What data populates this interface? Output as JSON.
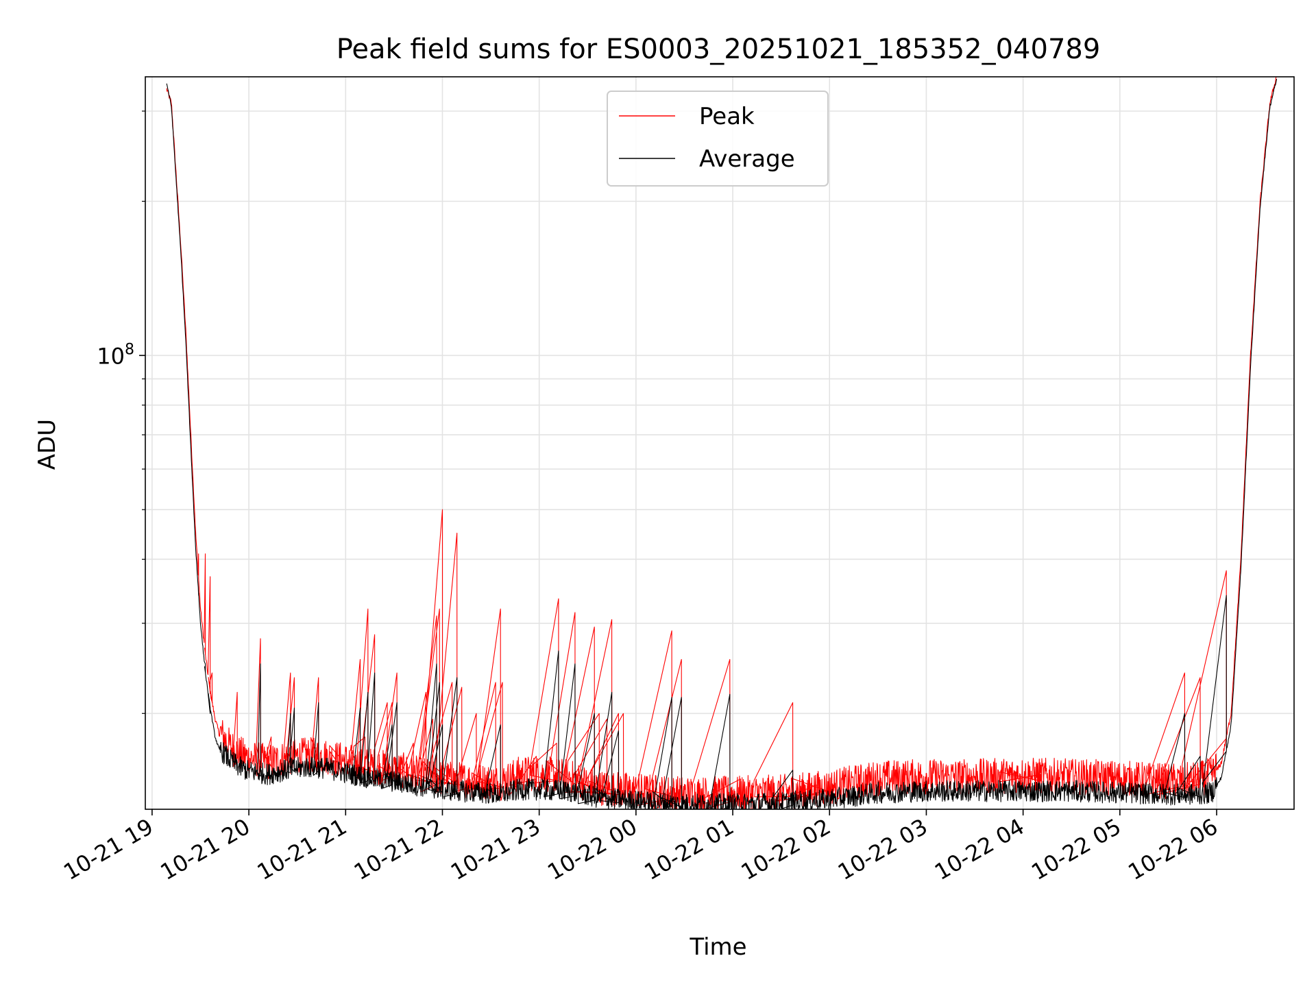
{
  "chart_data": {
    "type": "line",
    "title": "Peak field sums for ES0003_20251021_185352_040789",
    "xlabel": "Time",
    "ylabel": "ADU",
    "yscale": "log",
    "ylim": [
      13000000,
      350000000
    ],
    "xlim": [
      -0.07,
      11.8
    ],
    "x_unit": "hours after 2025-10-21 19:00",
    "grid": true,
    "legend_position": "upper center",
    "x_ticks": [
      {
        "value": 0,
        "label": "10-21 19"
      },
      {
        "value": 1,
        "label": "10-21 20"
      },
      {
        "value": 2,
        "label": "10-21 21"
      },
      {
        "value": 3,
        "label": "10-21 22"
      },
      {
        "value": 4,
        "label": "10-21 23"
      },
      {
        "value": 5,
        "label": "10-22 00"
      },
      {
        "value": 6,
        "label": "10-22 01"
      },
      {
        "value": 7,
        "label": "10-22 02"
      },
      {
        "value": 8,
        "label": "10-22 03"
      },
      {
        "value": 9,
        "label": "10-22 04"
      },
      {
        "value": 10,
        "label": "10-22 05"
      },
      {
        "value": 11,
        "label": "10-22 06"
      }
    ],
    "y_major_ticks": [
      {
        "value": 100000000,
        "base": "10",
        "exponent": "8"
      }
    ],
    "y_minor_ticks": [
      20000000,
      30000000,
      40000000,
      50000000,
      60000000,
      70000000,
      80000000,
      90000000,
      200000000,
      300000000
    ],
    "series": [
      {
        "name": "Peak",
        "color": "#ff0000",
        "baseline": [
          [
            0.15,
            330000000
          ],
          [
            0.2,
            310000000
          ],
          [
            0.3,
            160000000
          ],
          [
            0.35,
            110000000
          ],
          [
            0.4,
            70000000
          ],
          [
            0.45,
            45000000
          ],
          [
            0.5,
            32000000
          ],
          [
            0.55,
            26000000
          ],
          [
            0.6,
            22000000
          ],
          [
            0.65,
            19500000
          ],
          [
            0.7,
            18000000
          ],
          [
            0.8,
            16900000
          ],
          [
            0.9,
            16300000
          ],
          [
            1.0,
            16000000
          ],
          [
            1.2,
            15700000
          ],
          [
            1.4,
            16000000
          ],
          [
            1.6,
            16200000
          ],
          [
            1.8,
            16100000
          ],
          [
            2.0,
            15800000
          ],
          [
            2.2,
            15500000
          ],
          [
            2.4,
            15300000
          ],
          [
            2.6,
            15100000
          ],
          [
            2.8,
            14800000
          ],
          [
            3.0,
            14600000
          ],
          [
            3.2,
            14500000
          ],
          [
            3.4,
            14400000
          ],
          [
            3.6,
            14300000
          ],
          [
            3.8,
            14900000
          ],
          [
            4.0,
            14900000
          ],
          [
            4.3,
            14700000
          ],
          [
            4.6,
            14000000
          ],
          [
            5.0,
            13800000
          ],
          [
            5.5,
            13600000
          ],
          [
            6.0,
            13600000
          ],
          [
            6.5,
            13700000
          ],
          [
            7.0,
            14000000
          ],
          [
            7.5,
            14600000
          ],
          [
            8.0,
            14700000
          ],
          [
            8.5,
            14700000
          ],
          [
            9.0,
            14800000
          ],
          [
            9.5,
            14700000
          ],
          [
            10.0,
            14600000
          ],
          [
            10.5,
            14400000
          ],
          [
            10.8,
            14500000
          ],
          [
            10.95,
            14800000
          ],
          [
            11.05,
            16000000
          ],
          [
            11.15,
            20000000
          ],
          [
            11.25,
            40000000
          ],
          [
            11.35,
            100000000
          ],
          [
            11.45,
            200000000
          ],
          [
            11.55,
            310000000
          ],
          [
            11.62,
            350000000
          ]
        ],
        "spikes": [
          [
            0.48,
            41000000
          ],
          [
            0.55,
            41000000
          ],
          [
            0.6,
            37000000
          ],
          [
            0.62,
            24000000
          ],
          [
            0.88,
            22000000
          ],
          [
            1.12,
            28000000
          ],
          [
            1.23,
            18000000
          ],
          [
            1.43,
            24000000
          ],
          [
            1.47,
            23500000
          ],
          [
            1.72,
            23500000
          ],
          [
            1.93,
            16500000
          ],
          [
            2.15,
            25500000
          ],
          [
            2.2,
            18000000
          ],
          [
            2.23,
            32000000
          ],
          [
            2.3,
            28500000
          ],
          [
            2.43,
            21000000
          ],
          [
            2.48,
            21000000
          ],
          [
            2.53,
            24000000
          ],
          [
            2.7,
            17500000
          ],
          [
            2.83,
            22000000
          ],
          [
            2.9,
            19500000
          ],
          [
            2.94,
            31000000
          ],
          [
            2.97,
            32000000
          ],
          [
            3.0,
            50000000
          ],
          [
            3.1,
            23000000
          ],
          [
            3.15,
            45000000
          ],
          [
            3.2,
            22500000
          ],
          [
            3.35,
            20000000
          ],
          [
            3.55,
            23000000
          ],
          [
            3.6,
            32000000
          ],
          [
            3.62,
            23000000
          ],
          [
            3.97,
            16500000
          ],
          [
            4.18,
            17500000
          ],
          [
            4.2,
            33500000
          ],
          [
            4.37,
            31500000
          ],
          [
            4.57,
            29500000
          ],
          [
            4.62,
            20000000
          ],
          [
            4.7,
            19500000
          ],
          [
            4.75,
            30500000
          ],
          [
            4.82,
            20000000
          ],
          [
            4.87,
            20000000
          ],
          [
            5.37,
            29000000
          ],
          [
            5.47,
            25500000
          ],
          [
            5.97,
            25500000
          ],
          [
            6.08,
            14900000
          ],
          [
            6.62,
            21000000
          ],
          [
            6.87,
            14500000
          ],
          [
            7.02,
            14200000
          ],
          [
            9.18,
            15200000
          ],
          [
            10.67,
            24000000
          ],
          [
            10.83,
            23500000
          ],
          [
            11.1,
            38000000
          ]
        ]
      },
      {
        "name": "Average",
        "color": "#000000",
        "baseline": [
          [
            0.15,
            340000000
          ],
          [
            0.2,
            305000000
          ],
          [
            0.3,
            155000000
          ],
          [
            0.35,
            105000000
          ],
          [
            0.4,
            66000000
          ],
          [
            0.45,
            42000000
          ],
          [
            0.5,
            30000000
          ],
          [
            0.55,
            24000000
          ],
          [
            0.6,
            20500000
          ],
          [
            0.65,
            18000000
          ],
          [
            0.7,
            16800000
          ],
          [
            0.8,
            16000000
          ],
          [
            0.9,
            15500000
          ],
          [
            1.0,
            15200000
          ],
          [
            1.2,
            15000000
          ],
          [
            1.4,
            15300000
          ],
          [
            1.6,
            15500000
          ],
          [
            1.8,
            15400000
          ],
          [
            2.0,
            15100000
          ],
          [
            2.2,
            14800000
          ],
          [
            2.4,
            14600000
          ],
          [
            2.6,
            14400000
          ],
          [
            2.8,
            14200000
          ],
          [
            3.0,
            14000000
          ],
          [
            3.2,
            13900000
          ],
          [
            3.4,
            13800000
          ],
          [
            3.6,
            13700000
          ],
          [
            3.8,
            14000000
          ],
          [
            4.0,
            14000000
          ],
          [
            4.3,
            13900000
          ],
          [
            4.6,
            13500000
          ],
          [
            5.0,
            13300000
          ],
          [
            5.5,
            13100000
          ],
          [
            6.0,
            13100000
          ],
          [
            6.5,
            13200000
          ],
          [
            7.0,
            13400000
          ],
          [
            7.5,
            13800000
          ],
          [
            8.0,
            13900000
          ],
          [
            8.5,
            13900000
          ],
          [
            9.0,
            13900000
          ],
          [
            9.5,
            13900000
          ],
          [
            10.0,
            13800000
          ],
          [
            10.5,
            13700000
          ],
          [
            10.8,
            13700000
          ],
          [
            10.95,
            13800000
          ],
          [
            11.05,
            15000000
          ],
          [
            11.15,
            19000000
          ],
          [
            11.25,
            38000000
          ],
          [
            11.35,
            95000000
          ],
          [
            11.45,
            195000000
          ],
          [
            11.55,
            305000000
          ],
          [
            11.62,
            345000000
          ]
        ],
        "spikes": [
          [
            0.48,
            34000000
          ],
          [
            0.55,
            25000000
          ],
          [
            0.6,
            20000000
          ],
          [
            1.12,
            25000000
          ],
          [
            1.43,
            20000000
          ],
          [
            1.47,
            20500000
          ],
          [
            1.72,
            21000000
          ],
          [
            2.15,
            20500000
          ],
          [
            2.23,
            22000000
          ],
          [
            2.3,
            24000000
          ],
          [
            2.48,
            19000000
          ],
          [
            2.53,
            21000000
          ],
          [
            2.94,
            25000000
          ],
          [
            2.97,
            23000000
          ],
          [
            3.0,
            19000000
          ],
          [
            3.15,
            23500000
          ],
          [
            3.6,
            19000000
          ],
          [
            4.2,
            26500000
          ],
          [
            4.37,
            25000000
          ],
          [
            4.57,
            20000000
          ],
          [
            4.75,
            22000000
          ],
          [
            4.82,
            18500000
          ],
          [
            5.37,
            21500000
          ],
          [
            5.47,
            21500000
          ],
          [
            5.97,
            21800000
          ],
          [
            6.62,
            15500000
          ],
          [
            10.67,
            20000000
          ],
          [
            10.83,
            16500000
          ],
          [
            11.1,
            34000000
          ]
        ]
      }
    ]
  }
}
